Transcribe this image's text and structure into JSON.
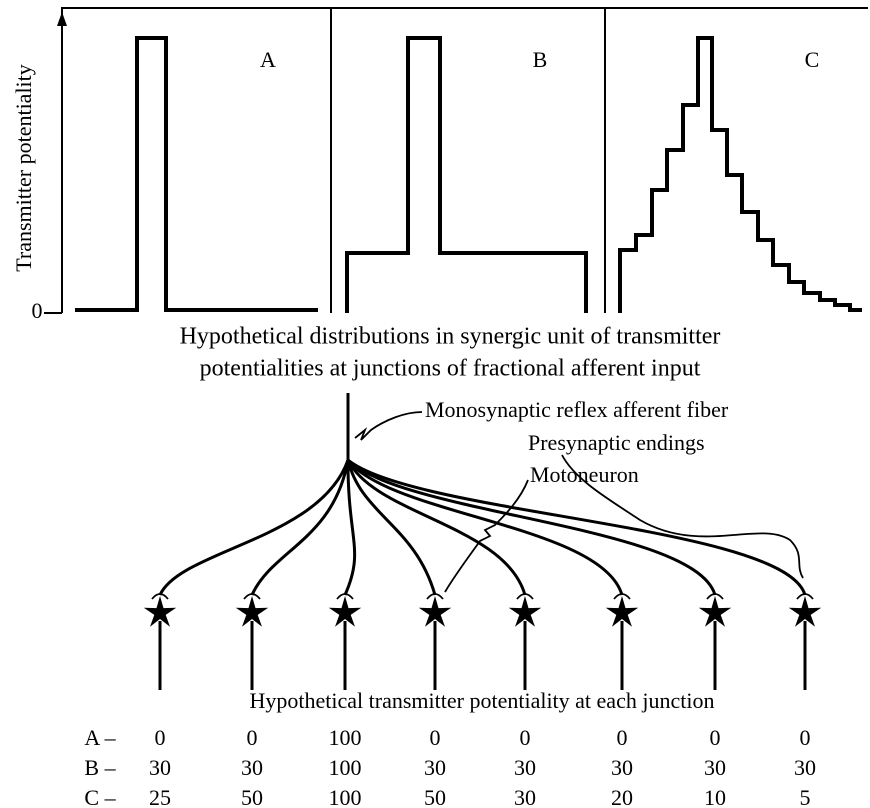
{
  "figure_top": {
    "y_axis_label": "Transmitter potentiality",
    "y_axis_zero": "0",
    "panels": [
      "A",
      "B",
      "C"
    ],
    "caption": [
      "Hypothetical distributions in synergic unit of transmitter",
      "potentialities at junctions of fractional afferent input"
    ]
  },
  "diagram": {
    "labels": [
      "Monosynaptic reflex afferent fiber",
      "Presynaptic endings",
      "Motoneuron"
    ]
  },
  "table": {
    "heading": "Hypothetical transmitter potentiality at each junction",
    "rows": [
      {
        "label": "A –",
        "values": [
          0,
          0,
          100,
          0,
          0,
          0,
          0,
          0
        ]
      },
      {
        "label": "B –",
        "values": [
          30,
          30,
          100,
          30,
          30,
          30,
          30,
          30
        ]
      },
      {
        "label": "C –",
        "values": [
          25,
          50,
          100,
          50,
          30,
          20,
          10,
          5
        ]
      }
    ]
  }
}
